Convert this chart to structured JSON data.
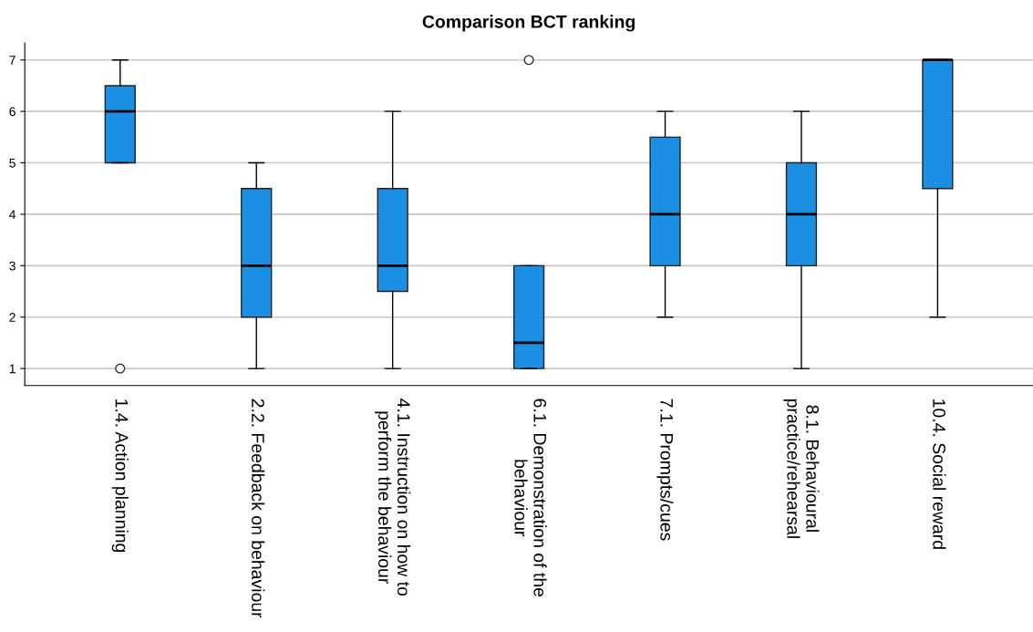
{
  "chart_data": {
    "type": "box",
    "title": "Comparison BCT ranking",
    "categories": [
      "1.4. Action planning",
      "2.2. Feedback on behaviour",
      "4.1. Instruction on how to\nperform the behaviour",
      "6.1. Demonstration of the\nbehaviour",
      "7.1. Prompts/cues",
      "8.1. Behavioural\npractice/rehearsal",
      "10.4. Social reward"
    ],
    "color": "#1a8fe3",
    "boxes": [
      {
        "low": 5,
        "q1": 5,
        "median": 6,
        "q3": 6.5,
        "high": 7,
        "outliers": [
          1
        ]
      },
      {
        "low": 1,
        "q1": 2,
        "median": 3,
        "q3": 4.5,
        "high": 5
      },
      {
        "low": 1,
        "q1": 2.5,
        "median": 3,
        "q3": 4.5,
        "high": 6
      },
      {
        "low": 1,
        "q1": 1,
        "median": 1.5,
        "q3": 3,
        "high": 3,
        "outliers": [
          7
        ]
      },
      {
        "low": 2,
        "q1": 3,
        "median": 4,
        "q3": 5.5,
        "high": 6
      },
      {
        "low": 1,
        "q1": 3,
        "median": 4,
        "q3": 5,
        "high": 6
      },
      {
        "low": 2,
        "q1": 4.5,
        "median": 7,
        "q3": 7,
        "high": 7
      }
    ],
    "ylim": [
      0.67,
      7.33
    ],
    "yticks": [
      1,
      2,
      3,
      4,
      5,
      6,
      7
    ],
    "grid": "y"
  }
}
